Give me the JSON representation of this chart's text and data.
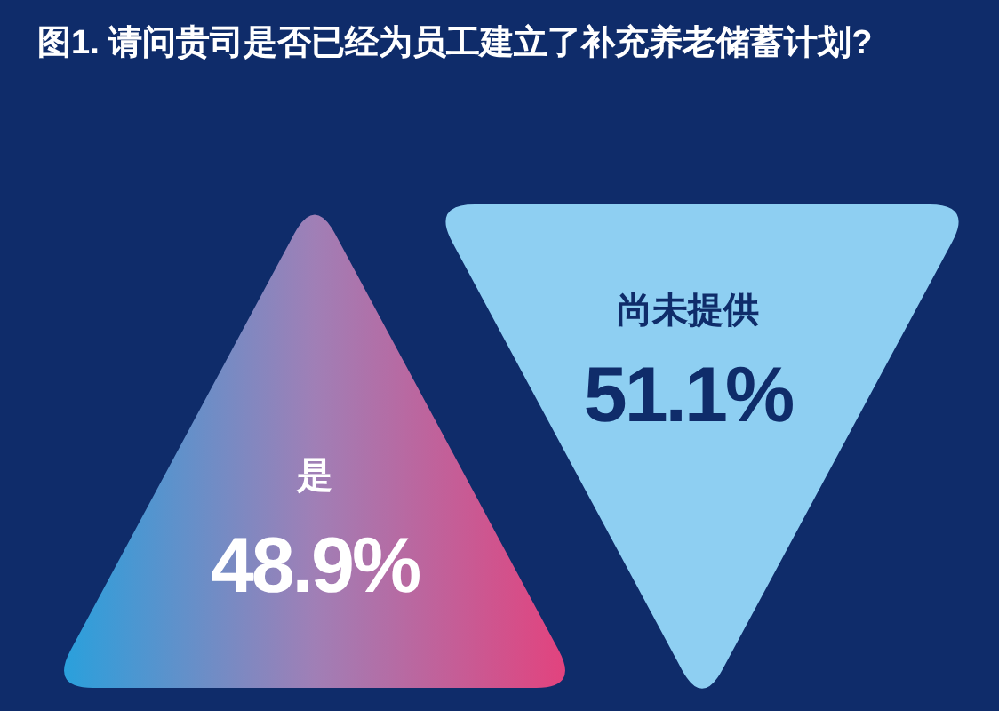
{
  "chart_data": {
    "type": "other",
    "title": "图1. 请问贵司是否已经为员工建立了补充养老储蓄计划?",
    "categories": [
      "是",
      "尚未提供"
    ],
    "values": [
      48.9,
      51.1
    ],
    "value_labels": [
      "48.9%",
      "51.1%"
    ],
    "colors": [
      "#a07fb6",
      "#8ecff2"
    ]
  }
}
